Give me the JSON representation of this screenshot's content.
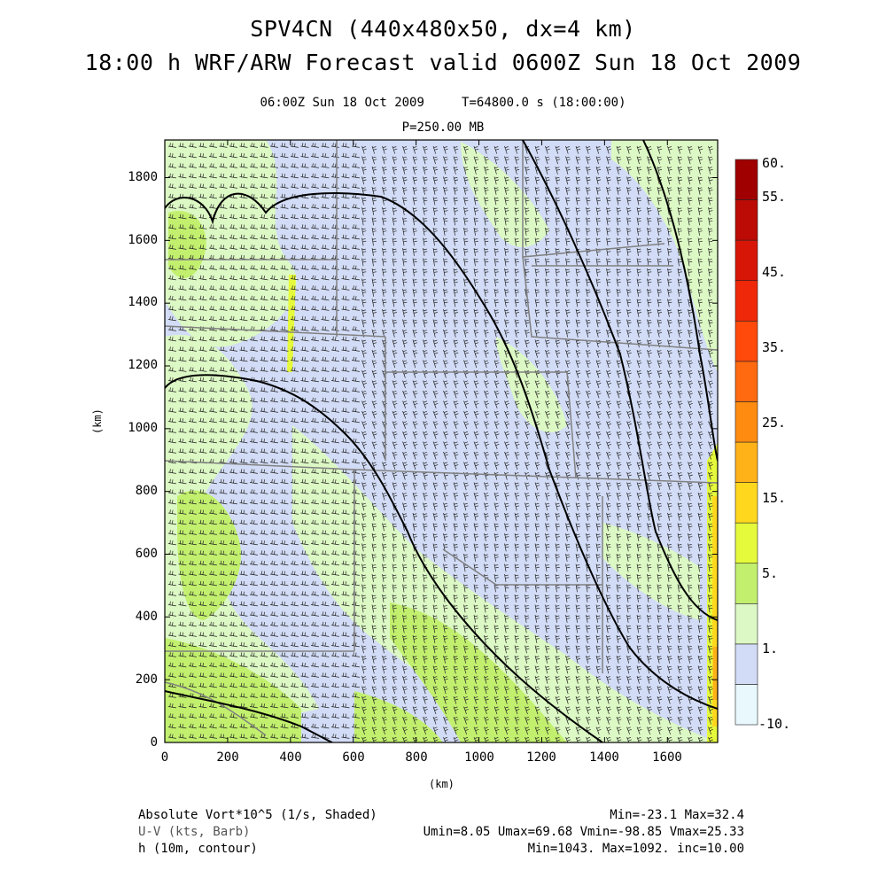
{
  "title": {
    "line1": "SPV4CN (440x480x50, dx=4 km)",
    "line2": "18:00 h WRF/ARW Forecast valid 0600Z Sun 18 Oct 2009"
  },
  "subtitle": {
    "valid_time": "06:00Z Sun 18 Oct 2009     T=64800.0 s (18:00:00)",
    "level": "P=250.00 MB"
  },
  "axes": {
    "x_label": "(km)",
    "y_label": "(km)",
    "x_ticks": [
      "0",
      "200",
      "400",
      "600",
      "800",
      "1000",
      "1200",
      "1400",
      "1600"
    ],
    "y_ticks": [
      "0",
      "200",
      "400",
      "600",
      "800",
      "1000",
      "1200",
      "1400",
      "1600",
      "1800"
    ],
    "x_range_km": [
      0,
      1760
    ],
    "y_range_km": [
      0,
      1920
    ]
  },
  "colorbar": {
    "labels": [
      "60.",
      "55.",
      "45.",
      "35.",
      "25.",
      "15.",
      "5.",
      "1.",
      "-10."
    ],
    "colors": [
      "#e8f8fc",
      "#d2dcf6",
      "#dcf8c4",
      "#c2f06e",
      "#e6fa3c",
      "#ffd81e",
      "#ffb218",
      "#ff8c10",
      "#ff6a10",
      "#ff4a0c",
      "#f0280a",
      "#d81608",
      "#bc0a04",
      "#a00000"
    ]
  },
  "footer": {
    "left": [
      "Absolute Vort*10^5 (1/s, Shaded)",
      "U-V (kts, Barb)",
      "h (10m, contour)"
    ],
    "right": [
      "Min=-23.1 Max=32.4",
      "Umin=8.05 Umax=69.68 Vmin=-98.85 Vmax=25.33",
      "Min=1043. Max=1092. inc=10.00"
    ]
  },
  "colors": {
    "background_vort": "#d2dcf6",
    "positive_vort": "#dcf8c4",
    "strong_vort": "#c2f06e",
    "contour": "#000000",
    "state_borders": "#808080"
  }
}
